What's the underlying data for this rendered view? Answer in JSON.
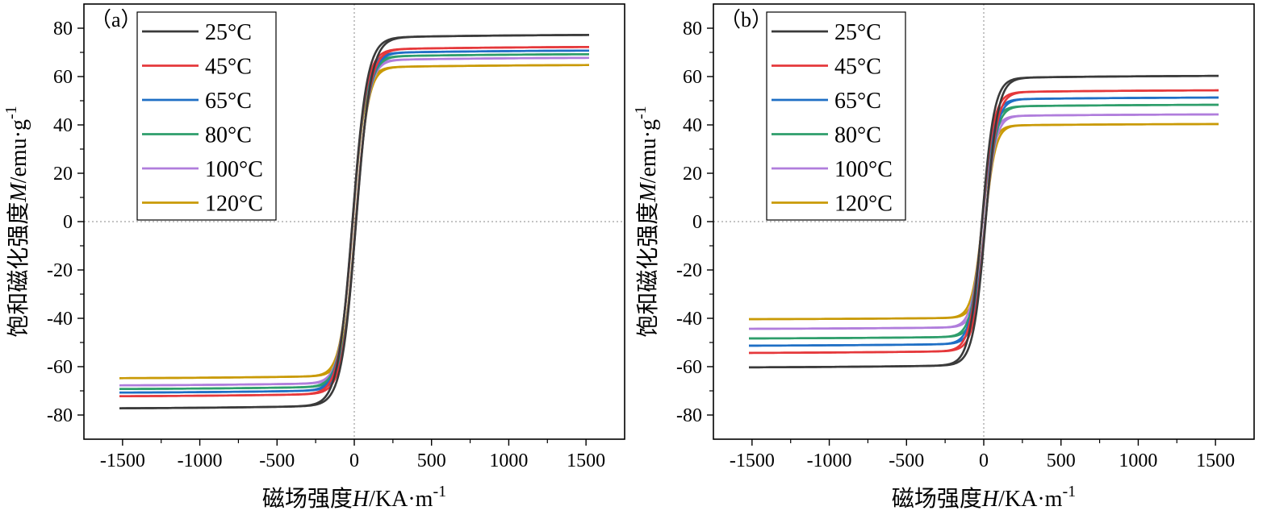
{
  "chart_data": [
    {
      "type": "line",
      "panel_label": "（a）",
      "xlabel": {
        "prefix": "磁场强度",
        "var": "H",
        "unit": "/KA·m",
        "exp": "-1"
      },
      "ylabel": {
        "prefix": "饱和磁化强度",
        "var": "M",
        "unit": "/emu·g",
        "exp": "-1"
      },
      "xlim": [
        -1750,
        1750
      ],
      "ylim": [
        -90,
        90
      ],
      "xticks": [
        -1500,
        -1000,
        -500,
        0,
        500,
        1000,
        1500
      ],
      "xtick_labels": [
        "-1500",
        "-1000",
        "-500",
        "0",
        "500",
        "1000",
        "1500"
      ],
      "yticks": [
        -80,
        -60,
        -40,
        -20,
        0,
        20,
        40,
        60,
        80
      ],
      "ytick_labels": [
        "-80",
        "-60",
        "-40",
        "-20",
        "0",
        "20",
        "40",
        "60",
        "80"
      ],
      "x_range": [
        -1520,
        1520
      ],
      "legend_position": "top-left",
      "series": [
        {
          "name": "25°C",
          "color": "#3a3a3a",
          "saturation": 77.5,
          "h_half": 95,
          "hysteresis": 12
        },
        {
          "name": "45°C",
          "color": "#e5383b",
          "saturation": 72.5,
          "h_half": 88,
          "hysteresis": 11
        },
        {
          "name": "65°C",
          "color": "#1f6fc5",
          "saturation": 71.0,
          "h_half": 86,
          "hysteresis": 11
        },
        {
          "name": "80°C",
          "color": "#2e9e6b",
          "saturation": 69.5,
          "h_half": 85,
          "hysteresis": 10
        },
        {
          "name": "100°C",
          "color": "#b07ddc",
          "saturation": 68.0,
          "h_half": 83,
          "hysteresis": 10
        },
        {
          "name": "120°C",
          "color": "#c99a06",
          "saturation": 65.0,
          "h_half": 80,
          "hysteresis": 9
        }
      ]
    },
    {
      "type": "line",
      "panel_label": "（b）",
      "xlabel": {
        "prefix": "磁场强度",
        "var": "H",
        "unit": "/KA·m",
        "exp": "-1"
      },
      "ylabel": {
        "prefix": "饱和磁化强度",
        "var": "M",
        "unit": "/emu·g",
        "exp": "-1"
      },
      "xlim": [
        -1750,
        1750
      ],
      "ylim": [
        -90,
        90
      ],
      "xticks": [
        -1500,
        -1000,
        -500,
        0,
        500,
        1000,
        1500
      ],
      "xtick_labels": [
        "-1500",
        "-1000",
        "-500",
        "0",
        "500",
        "1000",
        "1500"
      ],
      "yticks": [
        -80,
        -60,
        -40,
        -20,
        0,
        20,
        40,
        60,
        80
      ],
      "ytick_labels": [
        "-80",
        "-60",
        "-40",
        "-20",
        "0",
        "20",
        "40",
        "60",
        "80"
      ],
      "x_range": [
        -1520,
        1520
      ],
      "legend_position": "top-left",
      "series": [
        {
          "name": "25°C",
          "color": "#3a3a3a",
          "saturation": 60.5,
          "h_half": 80,
          "hysteresis": 12
        },
        {
          "name": "45°C",
          "color": "#e5383b",
          "saturation": 54.5,
          "h_half": 76,
          "hysteresis": 11
        },
        {
          "name": "65°C",
          "color": "#1f6fc5",
          "saturation": 51.5,
          "h_half": 74,
          "hysteresis": 10
        },
        {
          "name": "80°C",
          "color": "#2e9e6b",
          "saturation": 48.5,
          "h_half": 72,
          "hysteresis": 10
        },
        {
          "name": "100°C",
          "color": "#b07ddc",
          "saturation": 44.5,
          "h_half": 70,
          "hysteresis": 9
        },
        {
          "name": "120°C",
          "color": "#c99a06",
          "saturation": 40.5,
          "h_half": 68,
          "hysteresis": 9
        }
      ]
    }
  ]
}
